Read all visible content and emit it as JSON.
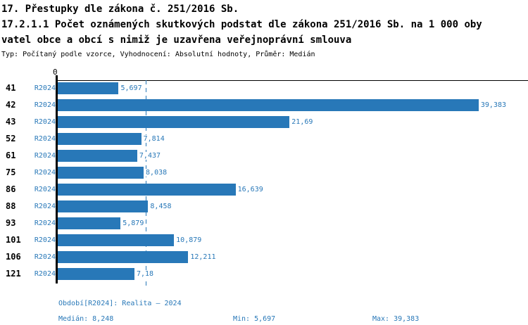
{
  "header": {
    "title_line1": "17. Přestupky dle zákona č. 251/2016 Sb.",
    "title_line2": "17.2.1.1 Počet oznámených skutkových podstat dle zákona 251/2016 Sb. na 1 000 oby",
    "title_line3": "vatel obce a obcí s nimiž je uzavřena veřejnoprávní smlouva",
    "meta": "Typ: Počítaný podle vzorce, Vyhodnocení: Absolutní hodnoty, Průměr: Medián"
  },
  "chart_data": {
    "type": "bar",
    "orientation": "horizontal",
    "title": "17.2.1.1 Počet oznámených skutkových podstat dle zákona 251/2016 Sb. na 1 000 obyvatel obce a obcí s nimiž je uzavřena veřejnoprávní smlouva",
    "series_label": "R2024",
    "categories": [
      "41",
      "42",
      "43",
      "52",
      "61",
      "75",
      "86",
      "88",
      "93",
      "101",
      "106",
      "121"
    ],
    "values": [
      5.697,
      39.383,
      21.69,
      7.814,
      7.437,
      8.038,
      16.639,
      8.458,
      5.879,
      10.879,
      12.211,
      7.18
    ],
    "value_labels": [
      "5,697",
      "39,383",
      "21,69",
      "7,814",
      "7,437",
      "8,038",
      "16,639",
      "8,458",
      "5,879",
      "10,879",
      "12,211",
      "7,18"
    ],
    "axis": {
      "zero_label": "0",
      "xlim": [
        0,
        44
      ],
      "grid": false
    },
    "median": 8.248,
    "min": 5.697,
    "max": 39.383,
    "bar_color": "#2878b8",
    "median_line_color": "#2878b8",
    "legend_position": "none"
  },
  "footer": {
    "period": "Období[R2024]: Realita – 2024",
    "median": "Medián: 8,248",
    "min": "Min: 5,697",
    "max": "Max: 39,383"
  }
}
